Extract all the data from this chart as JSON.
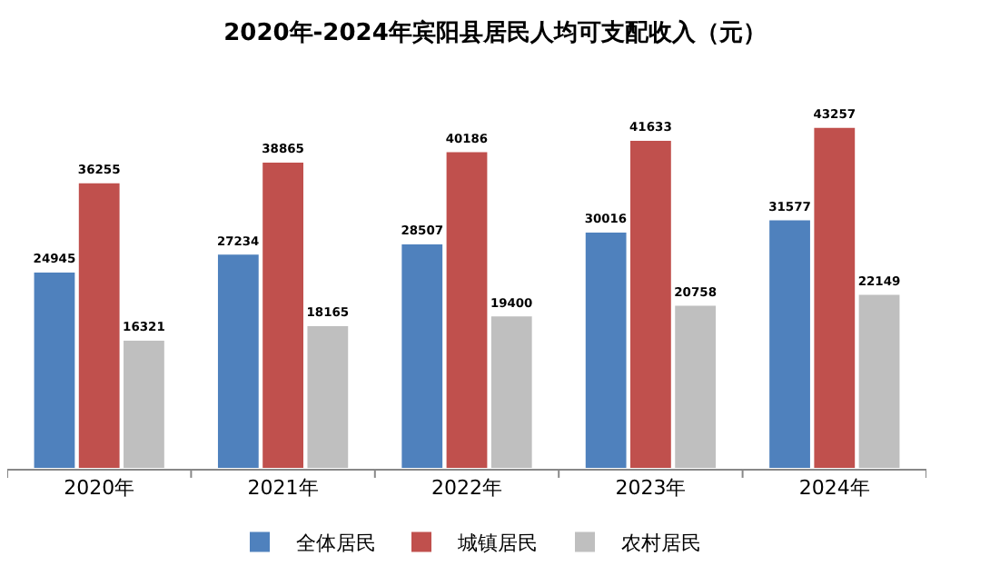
{
  "chart_data": {
    "type": "bar",
    "title": "2020年-2024年宾阳县居民人均可支配收入（元）",
    "categories": [
      "2020年",
      "2021年",
      "2022年",
      "2023年",
      "2024年"
    ],
    "series": [
      {
        "name": "全体居民",
        "color": "#4f81bd",
        "values": [
          24945,
          27234,
          28507,
          30016,
          31577
        ]
      },
      {
        "name": "城镇居民",
        "color": "#c0504d",
        "values": [
          36255,
          38865,
          40186,
          41633,
          43257
        ]
      },
      {
        "name": "农村居民",
        "color": "#bfbfbf",
        "values": [
          16321,
          18165,
          19400,
          20758,
          22149
        ]
      }
    ],
    "data_labels": true,
    "legend": "bottom"
  }
}
